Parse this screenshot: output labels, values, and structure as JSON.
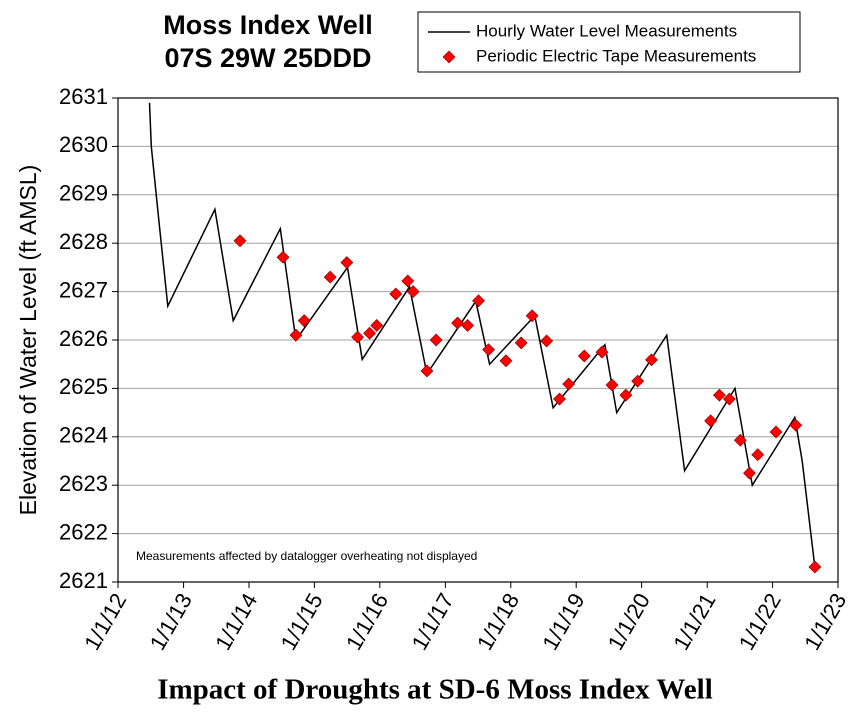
{
  "chart_data": {
    "type": "line",
    "title": "Moss Index Well",
    "subtitle": "07S 29W 25DDD",
    "xlabel": "Impact of Droughts at SD-6 Moss Index Well",
    "ylabel": "Elevation of Water Level (ft AMSL)",
    "annotation": "Measurements affected by datalogger overheating not displayed",
    "xlim": [
      "2012-01-01",
      "2023-01-01"
    ],
    "xticks": [
      {
        "value": "2012-01-01",
        "label": "1/1/12"
      },
      {
        "value": "2013-01-01",
        "label": "1/1/13"
      },
      {
        "value": "2014-01-01",
        "label": "1/1/14"
      },
      {
        "value": "2015-01-01",
        "label": "1/1/15"
      },
      {
        "value": "2016-01-01",
        "label": "1/1/16"
      },
      {
        "value": "2017-01-01",
        "label": "1/1/17"
      },
      {
        "value": "2018-01-01",
        "label": "1/1/18"
      },
      {
        "value": "2019-01-01",
        "label": "1/1/19"
      },
      {
        "value": "2020-01-01",
        "label": "1/1/20"
      },
      {
        "value": "2021-01-01",
        "label": "1/1/21"
      },
      {
        "value": "2022-01-01",
        "label": "1/1/22"
      },
      {
        "value": "2023-01-01",
        "label": "1/1/23"
      }
    ],
    "ylim": [
      2621,
      2631
    ],
    "yticks": [
      2621,
      2622,
      2623,
      2624,
      2625,
      2626,
      2627,
      2628,
      2629,
      2630,
      2631
    ],
    "grid": true,
    "legend": "top-right",
    "series": [
      {
        "name": "Hourly Water Level Measurements",
        "type": "line",
        "color": "#000000",
        "x": [
          "2012-06-25",
          "2012-07-05",
          "2012-08-15",
          "2012-10-05",
          "2013-06-25",
          "2013-10-05",
          "2014-06-25",
          "2014-09-20",
          "2015-07-05",
          "2015-09-25",
          "2016-06-15",
          "2016-09-20",
          "2017-06-20",
          "2017-09-05",
          "2018-05-15",
          "2018-08-25",
          "2019-06-10",
          "2019-08-15",
          "2020-05-20",
          "2020-08-28",
          "2021-06-05",
          "2021-09-10",
          "2022-05-05",
          "2022-06-15",
          "2022-08-25"
        ],
        "values": [
          2630.9,
          2630.0,
          2628.5,
          2626.7,
          2628.7,
          2626.4,
          2628.3,
          2626.0,
          2627.5,
          2625.6,
          2627.1,
          2625.3,
          2626.8,
          2625.5,
          2626.5,
          2624.6,
          2625.9,
          2624.5,
          2626.1,
          2623.3,
          2625.0,
          2623.0,
          2624.4,
          2623.5,
          2621.3
        ]
      },
      {
        "name": "Periodic Electric Tape Measurements",
        "type": "scatter",
        "color": "#ff0000",
        "marker": "diamond",
        "x": [
          "2013-11-12",
          "2014-07-10",
          "2014-09-20",
          "2014-11-05",
          "2015-03-30",
          "2015-07-01",
          "2015-08-30",
          "2015-11-05",
          "2015-12-15",
          "2016-03-30",
          "2016-06-05",
          "2016-07-05",
          "2016-09-20",
          "2016-11-10",
          "2017-03-10",
          "2017-05-05",
          "2017-07-05",
          "2017-08-30",
          "2017-12-05",
          "2018-02-28",
          "2018-04-30",
          "2018-07-20",
          "2018-09-30",
          "2018-11-20",
          "2019-02-15",
          "2019-05-25",
          "2019-07-20",
          "2019-10-05",
          "2019-12-10",
          "2020-02-25",
          "2021-01-20",
          "2021-03-10",
          "2021-05-05",
          "2021-07-05",
          "2021-08-25",
          "2021-10-10",
          "2022-01-20",
          "2022-05-10",
          "2022-08-25"
        ],
        "values": [
          2628.05,
          2627.71,
          2626.1,
          2626.4,
          2627.3,
          2627.6,
          2626.06,
          2626.14,
          2626.3,
          2626.95,
          2627.22,
          2627.0,
          2625.36,
          2626.0,
          2626.35,
          2626.3,
          2626.81,
          2625.8,
          2625.57,
          2625.94,
          2626.5,
          2625.98,
          2624.78,
          2625.09,
          2625.67,
          2625.75,
          2625.07,
          2624.86,
          2625.15,
          2625.59,
          2624.33,
          2624.86,
          2624.78,
          2623.93,
          2623.25,
          2623.63,
          2624.1,
          2624.24,
          2621.31
        ]
      }
    ]
  }
}
